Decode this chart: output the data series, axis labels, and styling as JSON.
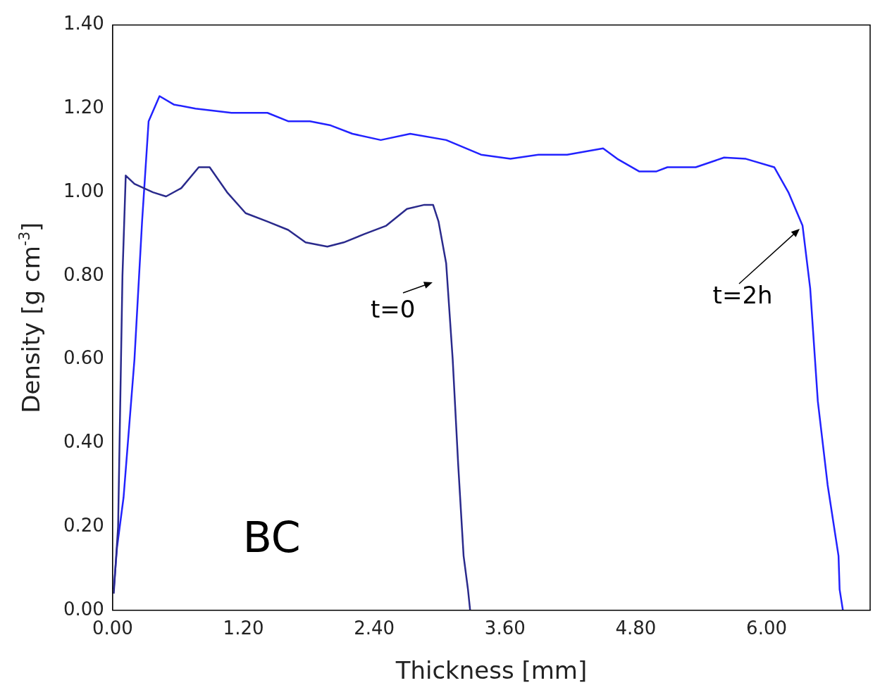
{
  "chart_data": {
    "type": "line",
    "xlabel": "Thickness [mm]",
    "ylabel": "Density [g cm$^{-3}$]",
    "xlim": [
      0,
      6.95
    ],
    "xticks": [
      {
        "value": 0,
        "label": "0.00"
      },
      {
        "value": 1.2,
        "label": "1.20"
      },
      {
        "value": 2.4,
        "label": "2.40"
      },
      {
        "value": 3.6,
        "label": "3.60"
      },
      {
        "value": 4.8,
        "label": "4.80"
      },
      {
        "value": 6,
        "label": "6.00"
      }
    ],
    "ylim": [
      0,
      1.4
    ],
    "yticks": [
      {
        "value": 0,
        "label": "0.00"
      },
      {
        "value": 0.2,
        "label": "0.20"
      },
      {
        "value": 0.4,
        "label": "0.40"
      },
      {
        "value": 0.6,
        "label": "0.60"
      },
      {
        "value": 0.8,
        "label": "0.80"
      },
      {
        "value": 1,
        "label": "1.00"
      },
      {
        "value": 1.2,
        "label": "1.20"
      },
      {
        "value": 1.4,
        "label": "1.40"
      }
    ],
    "grid": false,
    "legend": false,
    "marker": "none",
    "line_style": "solid",
    "series": [
      {
        "color": "#2a2a8c",
        "x": [
          0.01,
          0.05,
          0.09,
          0.12,
          0.2,
          0.37,
          0.49,
          0.63,
          0.79,
          0.89,
          1.05,
          1.22,
          1.42,
          1.61,
          1.77,
          1.97,
          2.12,
          2.31,
          2.51,
          2.7,
          2.86,
          2.94,
          2.99,
          3.06,
          3.12,
          3.17,
          3.22,
          3.26,
          3.28
        ],
        "values": [
          0.04,
          0.2,
          0.8,
          1.04,
          1.02,
          1.0,
          0.99,
          1.01,
          1.06,
          1.06,
          1.0,
          0.95,
          0.93,
          0.91,
          0.88,
          0.87,
          0.88,
          0.9,
          0.92,
          0.96,
          0.97,
          0.97,
          0.93,
          0.83,
          0.6,
          0.35,
          0.13,
          0.05,
          0.0
        ]
      },
      {
        "color": "#2222ff",
        "x": [
          0.01,
          0.04,
          0.1,
          0.2,
          0.27,
          0.33,
          0.43,
          0.56,
          0.76,
          1.09,
          1.42,
          1.61,
          1.81,
          2.0,
          2.2,
          2.46,
          2.73,
          3.06,
          3.38,
          3.65,
          3.91,
          4.17,
          4.5,
          4.63,
          4.83,
          4.99,
          5.09,
          5.35,
          5.61,
          5.81,
          6.07,
          6.2,
          6.33,
          6.4,
          6.47,
          6.56,
          6.66,
          6.67,
          6.7
        ],
        "values": [
          0.05,
          0.15,
          0.27,
          0.6,
          0.93,
          1.17,
          1.23,
          1.21,
          1.2,
          1.19,
          1.19,
          1.17,
          1.17,
          1.16,
          1.14,
          1.125,
          1.14,
          1.125,
          1.09,
          1.08,
          1.09,
          1.09,
          1.105,
          1.08,
          1.05,
          1.05,
          1.06,
          1.06,
          1.083,
          1.08,
          1.06,
          1.0,
          0.92,
          0.77,
          0.5,
          0.3,
          0.13,
          0.05,
          0.0
        ]
      }
    ],
    "annotations": [
      "t=0",
      {
        "text": "t=2h",
        "x": 6.33,
        "y": 0.92
      },
      "BC"
    ]
  }
}
